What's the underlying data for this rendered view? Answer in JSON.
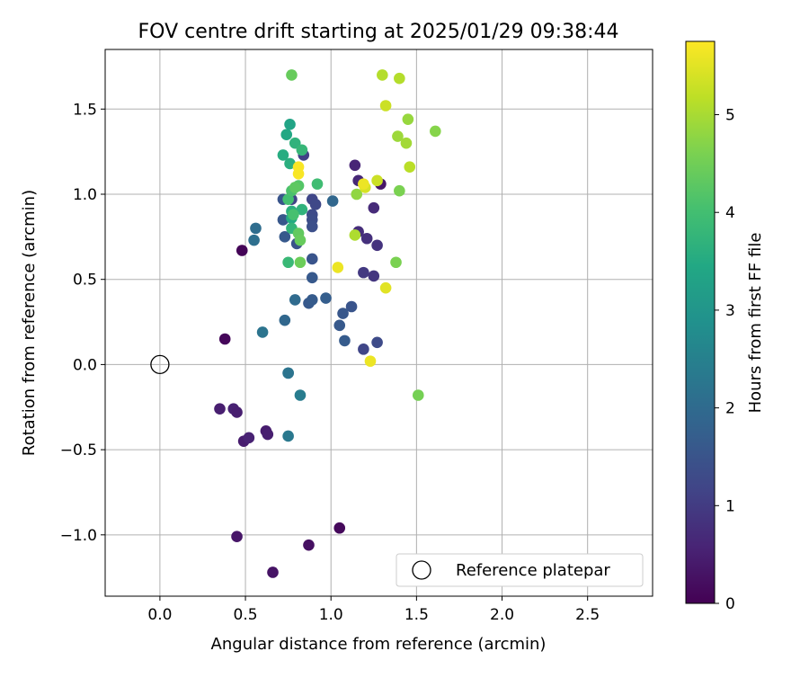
{
  "chart_data": {
    "type": "scatter",
    "title": "FOV centre drift starting at 2025/01/29 09:38:44",
    "xlabel": "Angular distance from reference (arcmin)",
    "ylabel": "Rotation from reference (arcmin)",
    "xlim": [
      -0.32,
      2.88
    ],
    "ylim": [
      -1.36,
      1.85
    ],
    "xticks": [
      0.0,
      0.5,
      1.0,
      1.5,
      2.0,
      2.5
    ],
    "xtick_labels": [
      "0.0",
      "0.5",
      "1.0",
      "1.5",
      "2.0",
      "2.5"
    ],
    "yticks": [
      -1.0,
      -0.5,
      0.0,
      0.5,
      1.0,
      1.5
    ],
    "ytick_labels": [
      "−1.0",
      "−0.5",
      "0.0",
      "0.5",
      "1.0",
      "1.5"
    ],
    "grid": true,
    "legend": {
      "placement": "lower-right",
      "entries": [
        "Reference platepar"
      ]
    },
    "reference_point": {
      "x": 0.0,
      "y": 0.0,
      "label": "Reference platepar",
      "marker": "open-circle"
    },
    "colorbar": {
      "label": "Hours from first FF file",
      "colormap": "viridis",
      "range": [
        0,
        5.75
      ],
      "ticks": [
        0,
        1,
        2,
        3,
        4,
        5
      ],
      "tick_labels": [
        "0",
        "1",
        "2",
        "3",
        "4",
        "5"
      ]
    },
    "series": [
      {
        "points": [
          {
            "x": 0.48,
            "y": 0.67,
            "c": 0.05
          },
          {
            "x": 0.38,
            "y": 0.15,
            "c": 0.1
          },
          {
            "x": 1.05,
            "y": -0.96,
            "c": 0.12
          },
          {
            "x": 0.87,
            "y": -1.06,
            "c": 0.25
          },
          {
            "x": 0.66,
            "y": -1.22,
            "c": 0.3
          },
          {
            "x": 0.45,
            "y": -1.01,
            "c": 0.35
          },
          {
            "x": 0.35,
            "y": -0.26,
            "c": 0.5
          },
          {
            "x": 0.43,
            "y": -0.26,
            "c": 0.55
          },
          {
            "x": 0.45,
            "y": -0.28,
            "c": 0.5
          },
          {
            "x": 0.49,
            "y": -0.45,
            "c": 0.45
          },
          {
            "x": 0.52,
            "y": -0.43,
            "c": 0.55
          },
          {
            "x": 0.62,
            "y": -0.39,
            "c": 0.45
          },
          {
            "x": 0.63,
            "y": -0.41,
            "c": 0.5
          },
          {
            "x": 1.29,
            "y": 1.06,
            "c": 0.35
          },
          {
            "x": 1.14,
            "y": 1.17,
            "c": 0.6
          },
          {
            "x": 1.16,
            "y": 1.08,
            "c": 0.65
          },
          {
            "x": 1.25,
            "y": 0.92,
            "c": 0.7
          },
          {
            "x": 1.16,
            "y": 0.78,
            "c": 0.75
          },
          {
            "x": 1.21,
            "y": 0.74,
            "c": 0.8
          },
          {
            "x": 1.27,
            "y": 0.7,
            "c": 0.85
          },
          {
            "x": 1.19,
            "y": 0.54,
            "c": 0.95
          },
          {
            "x": 1.25,
            "y": 0.52,
            "c": 0.9
          },
          {
            "x": 0.84,
            "y": 1.23,
            "c": 1.1
          },
          {
            "x": 0.77,
            "y": 0.97,
            "c": 1.15
          },
          {
            "x": 0.89,
            "y": 0.97,
            "c": 1.2
          },
          {
            "x": 0.91,
            "y": 0.94,
            "c": 1.25
          },
          {
            "x": 0.89,
            "y": 0.88,
            "c": 1.3
          },
          {
            "x": 0.89,
            "y": 0.85,
            "c": 1.35
          },
          {
            "x": 0.89,
            "y": 0.81,
            "c": 1.4
          },
          {
            "x": 0.72,
            "y": 0.97,
            "c": 1.5
          },
          {
            "x": 0.72,
            "y": 0.85,
            "c": 1.55
          },
          {
            "x": 0.73,
            "y": 0.75,
            "c": 1.6
          },
          {
            "x": 0.8,
            "y": 0.71,
            "c": 1.45
          },
          {
            "x": 0.89,
            "y": 0.62,
            "c": 1.5
          },
          {
            "x": 0.89,
            "y": 0.51,
            "c": 1.6
          },
          {
            "x": 0.87,
            "y": 0.36,
            "c": 1.6
          },
          {
            "x": 0.89,
            "y": 0.38,
            "c": 1.65
          },
          {
            "x": 0.97,
            "y": 0.39,
            "c": 1.7
          },
          {
            "x": 1.12,
            "y": 0.34,
            "c": 1.5
          },
          {
            "x": 1.07,
            "y": 0.3,
            "c": 1.55
          },
          {
            "x": 1.05,
            "y": 0.23,
            "c": 1.6
          },
          {
            "x": 1.08,
            "y": 0.14,
            "c": 1.65
          },
          {
            "x": 1.19,
            "y": 0.09,
            "c": 1.2
          },
          {
            "x": 1.27,
            "y": 0.13,
            "c": 1.3
          },
          {
            "x": 1.01,
            "y": 0.96,
            "c": 1.9
          },
          {
            "x": 0.73,
            "y": 0.26,
            "c": 1.9
          },
          {
            "x": 0.79,
            "y": 0.38,
            "c": 2.0
          },
          {
            "x": 0.56,
            "y": 0.8,
            "c": 2.05
          },
          {
            "x": 0.55,
            "y": 0.73,
            "c": 2.1
          },
          {
            "x": 0.6,
            "y": 0.19,
            "c": 2.2
          },
          {
            "x": 0.75,
            "y": -0.05,
            "c": 2.25
          },
          {
            "x": 0.75,
            "y": -0.05,
            "c": 2.2
          },
          {
            "x": 0.82,
            "y": -0.18,
            "c": 2.4
          },
          {
            "x": 0.75,
            "y": -0.42,
            "c": 2.3
          },
          {
            "x": 0.76,
            "y": 1.41,
            "c": 3.35
          },
          {
            "x": 0.74,
            "y": 1.35,
            "c": 3.45
          },
          {
            "x": 0.72,
            "y": 1.23,
            "c": 3.55
          },
          {
            "x": 0.76,
            "y": 1.18,
            "c": 3.6
          },
          {
            "x": 0.79,
            "y": 1.3,
            "c": 3.7
          },
          {
            "x": 0.83,
            "y": 1.26,
            "c": 3.8
          },
          {
            "x": 0.77,
            "y": 0.86,
            "c": 3.5
          },
          {
            "x": 0.77,
            "y": 0.9,
            "c": 3.6
          },
          {
            "x": 0.77,
            "y": 0.8,
            "c": 3.75
          },
          {
            "x": 0.83,
            "y": 0.91,
            "c": 3.7
          },
          {
            "x": 0.75,
            "y": 0.97,
            "c": 4.0
          },
          {
            "x": 0.77,
            "y": 1.02,
            "c": 4.1
          },
          {
            "x": 0.81,
            "y": 1.05,
            "c": 4.2
          },
          {
            "x": 0.75,
            "y": 0.6,
            "c": 3.85
          },
          {
            "x": 0.92,
            "y": 1.06,
            "c": 3.95
          },
          {
            "x": 0.78,
            "y": 0.88,
            "c": 4.05
          },
          {
            "x": 0.79,
            "y": 1.04,
            "c": 4.3
          },
          {
            "x": 0.81,
            "y": 0.77,
            "c": 4.35
          },
          {
            "x": 0.82,
            "y": 0.73,
            "c": 4.4
          },
          {
            "x": 0.82,
            "y": 0.6,
            "c": 4.45
          },
          {
            "x": 0.77,
            "y": 1.7,
            "c": 4.4
          },
          {
            "x": 1.51,
            "y": -0.18,
            "c": 4.55
          },
          {
            "x": 1.38,
            "y": 0.6,
            "c": 4.6
          },
          {
            "x": 1.4,
            "y": 1.02,
            "c": 4.6
          },
          {
            "x": 1.15,
            "y": 1.0,
            "c": 4.8
          },
          {
            "x": 1.14,
            "y": 0.76,
            "c": 5.05
          },
          {
            "x": 1.61,
            "y": 1.37,
            "c": 4.7
          },
          {
            "x": 1.45,
            "y": 1.44,
            "c": 4.85
          },
          {
            "x": 1.39,
            "y": 1.34,
            "c": 4.9
          },
          {
            "x": 1.44,
            "y": 1.3,
            "c": 4.95
          },
          {
            "x": 1.46,
            "y": 1.16,
            "c": 5.15
          },
          {
            "x": 1.3,
            "y": 1.7,
            "c": 5.1
          },
          {
            "x": 1.4,
            "y": 1.68,
            "c": 5.1
          },
          {
            "x": 1.32,
            "y": 1.52,
            "c": 5.3
          },
          {
            "x": 1.27,
            "y": 1.08,
            "c": 5.3
          },
          {
            "x": 1.2,
            "y": 1.04,
            "c": 5.4
          },
          {
            "x": 1.19,
            "y": 1.06,
            "c": 5.6
          },
          {
            "x": 1.32,
            "y": 0.45,
            "c": 5.5
          },
          {
            "x": 1.04,
            "y": 0.57,
            "c": 5.6
          },
          {
            "x": 0.81,
            "y": 1.16,
            "c": 5.7
          },
          {
            "x": 0.81,
            "y": 1.12,
            "c": 5.7
          },
          {
            "x": 1.23,
            "y": 0.02,
            "c": 5.6
          }
        ]
      }
    ]
  }
}
